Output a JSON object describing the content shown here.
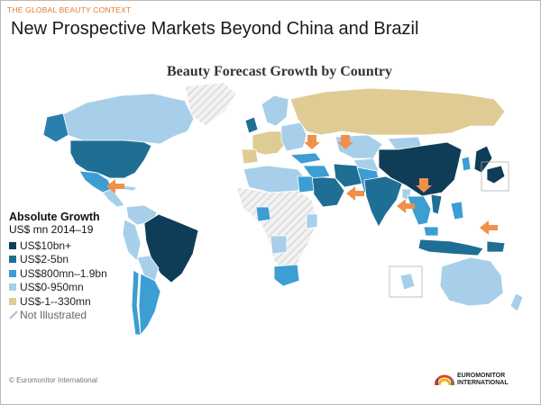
{
  "header": {
    "context_label": "THE GLOBAL BEAUTY CONTEXT",
    "title": "New Prospective Markets Beyond China and Brazil"
  },
  "map": {
    "title": "Beauty  Forecast Growth by Country",
    "arrow_color": "#f0904a",
    "ocean_color": "#ffffff"
  },
  "legend": {
    "title": "Absolute Growth",
    "subtitle": "US$ mn 2014–19",
    "items": [
      {
        "label": "US$10bn+",
        "color": "#0f3d57"
      },
      {
        "label": "US$2-5bn",
        "color": "#1f6f94"
      },
      {
        "label": "US$800mn–1.9bn",
        "color": "#3c9ed3"
      },
      {
        "label": "US$0-950mn",
        "color": "#a7cfea"
      },
      {
        "label": "US$-1--330mn",
        "color": "#dfcb94"
      },
      {
        "label": "Not Illustrated",
        "color": "hatch"
      }
    ]
  },
  "footer": {
    "copyright": "© Euromonitor International",
    "logo_line1": "EUROMONITOR",
    "logo_line2": "INTERNATIONAL"
  }
}
